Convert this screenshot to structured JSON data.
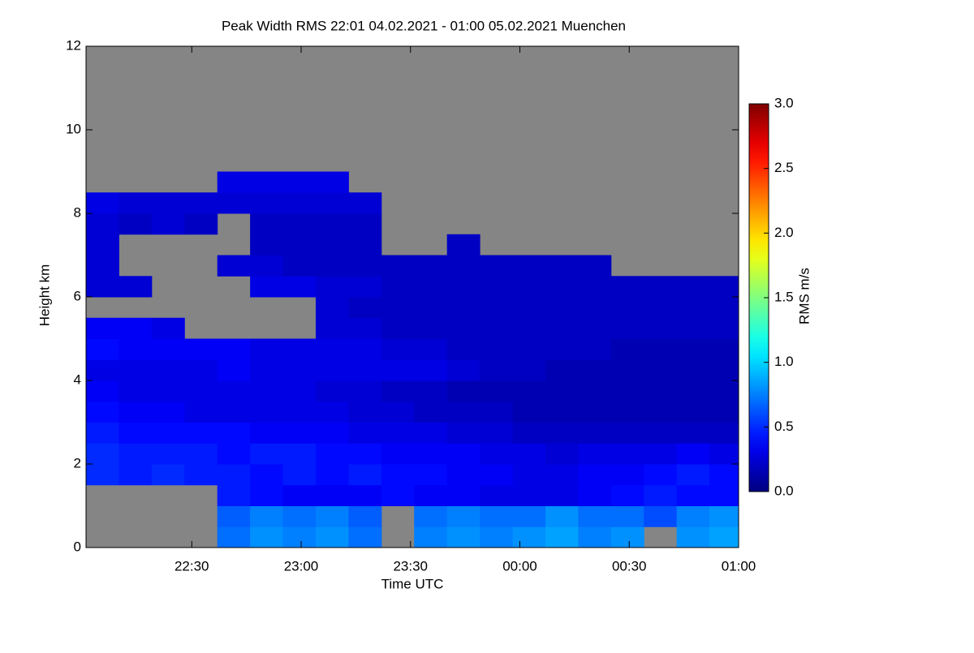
{
  "chart_data": {
    "type": "heatmap",
    "title": "Peak Width RMS   22:01 04.02.2021 - 01:00 05.02.2021 Muenchen",
    "x_label": "Time UTC",
    "y_label": "Height km",
    "colorbar_label": "RMS m/s",
    "colormap": "jet",
    "missing_color": "#858585",
    "xlim": [
      "2021-02-04T22:01",
      "2021-02-05T01:00"
    ],
    "xticks": [
      {
        "value": "2021-02-04T22:30",
        "label": "22:30"
      },
      {
        "value": "2021-02-04T23:00",
        "label": "23:00"
      },
      {
        "value": "2021-02-04T23:30",
        "label": "23:30"
      },
      {
        "value": "2021-02-05T00:00",
        "label": "00:00"
      },
      {
        "value": "2021-02-05T00:30",
        "label": "00:30"
      },
      {
        "value": "2021-02-05T01:00",
        "label": "01:00"
      }
    ],
    "ylim": [
      0,
      12
    ],
    "yticks": [
      0,
      2,
      4,
      6,
      8,
      10,
      12
    ],
    "clim": [
      0,
      3
    ],
    "cticks": [
      {
        "value": 0,
        "label": "0.0"
      },
      0.5,
      {
        "value": 1,
        "label": "1.0"
      },
      1.5,
      {
        "value": 2,
        "label": "2.0"
      },
      2.5,
      {
        "value": 3,
        "label": "3.0"
      }
    ],
    "x": [
      "2021-02-04T22:01",
      "2021-02-04T22:10",
      "2021-02-04T22:19",
      "2021-02-04T22:28",
      "2021-02-04T22:37",
      "2021-02-04T22:46",
      "2021-02-04T22:55",
      "2021-02-04T23:04",
      "2021-02-04T23:13",
      "2021-02-04T23:22",
      "2021-02-04T23:31",
      "2021-02-04T23:40",
      "2021-02-04T23:49",
      "2021-02-04T23:58",
      "2021-02-05T00:07",
      "2021-02-05T00:16",
      "2021-02-05T00:25",
      "2021-02-05T00:34",
      "2021-02-05T00:43",
      "2021-02-05T00:52"
    ],
    "y": [
      0,
      0.5,
      1,
      1.5,
      2,
      2.5,
      3,
      3.5,
      4,
      4.5,
      5,
      5.5,
      6,
      6.5,
      7,
      7.5,
      8,
      8.5,
      9,
      9.5,
      10,
      10.5,
      11,
      11.5
    ],
    "z": [
      [
        null,
        null,
        null,
        null,
        0.7,
        0.8,
        0.75,
        0.8,
        0.7,
        null,
        0.75,
        0.8,
        0.75,
        0.8,
        0.85,
        0.75,
        0.8,
        null,
        0.8,
        0.85
      ],
      [
        null,
        null,
        null,
        null,
        0.65,
        0.75,
        0.7,
        0.75,
        0.65,
        null,
        0.7,
        0.75,
        0.7,
        0.7,
        0.8,
        0.7,
        0.7,
        0.6,
        0.75,
        0.8
      ],
      [
        null,
        null,
        null,
        null,
        0.45,
        0.4,
        0.35,
        0.35,
        0.35,
        0.4,
        0.35,
        0.35,
        0.3,
        0.3,
        0.3,
        0.35,
        0.4,
        0.45,
        0.4,
        0.4
      ],
      [
        0.5,
        0.45,
        0.5,
        0.45,
        0.45,
        0.4,
        0.45,
        0.4,
        0.45,
        0.4,
        0.4,
        0.35,
        0.35,
        0.3,
        0.3,
        0.35,
        0.35,
        0.4,
        0.45,
        0.4
      ],
      [
        0.5,
        0.45,
        0.45,
        0.45,
        0.4,
        0.45,
        0.45,
        0.4,
        0.4,
        0.35,
        0.35,
        0.35,
        0.3,
        0.3,
        0.25,
        0.3,
        0.3,
        0.3,
        0.35,
        0.3
      ],
      [
        0.45,
        0.4,
        0.4,
        0.4,
        0.4,
        0.35,
        0.35,
        0.35,
        0.3,
        0.3,
        0.3,
        0.25,
        0.25,
        0.2,
        0.2,
        0.2,
        0.2,
        0.2,
        0.2,
        0.2
      ],
      [
        0.4,
        0.35,
        0.35,
        0.3,
        0.3,
        0.3,
        0.3,
        0.3,
        0.25,
        0.25,
        0.2,
        0.2,
        0.2,
        0.15,
        0.15,
        0.15,
        0.15,
        0.15,
        0.15,
        0.15
      ],
      [
        0.35,
        0.3,
        0.3,
        0.3,
        0.3,
        0.3,
        0.3,
        0.25,
        0.25,
        0.2,
        0.2,
        0.15,
        0.15,
        0.15,
        0.15,
        0.15,
        0.15,
        0.15,
        0.15,
        0.15
      ],
      [
        0.3,
        0.3,
        0.3,
        0.3,
        0.35,
        0.3,
        0.3,
        0.3,
        0.3,
        0.3,
        0.3,
        0.25,
        0.2,
        0.2,
        0.15,
        0.15,
        0.15,
        0.15,
        0.15,
        0.15
      ],
      [
        0.4,
        0.35,
        0.35,
        0.35,
        0.35,
        0.3,
        0.3,
        0.3,
        0.3,
        0.25,
        0.25,
        0.2,
        0.2,
        0.2,
        0.2,
        0.2,
        0.15,
        0.15,
        0.15,
        0.15
      ],
      [
        0.35,
        0.35,
        0.3,
        null,
        null,
        null,
        null,
        0.25,
        0.25,
        0.2,
        0.2,
        0.2,
        0.2,
        0.2,
        0.2,
        0.2,
        0.2,
        0.2,
        0.2,
        0.2
      ],
      [
        null,
        null,
        null,
        null,
        null,
        null,
        null,
        0.25,
        0.2,
        0.2,
        0.2,
        0.2,
        0.2,
        0.2,
        0.2,
        0.2,
        0.2,
        0.2,
        0.2,
        0.2
      ],
      [
        0.25,
        0.25,
        null,
        null,
        null,
        0.3,
        0.3,
        0.25,
        0.25,
        0.2,
        0.2,
        0.2,
        0.2,
        0.2,
        0.2,
        0.2,
        0.2,
        0.2,
        0.2,
        0.2
      ],
      [
        0.25,
        null,
        null,
        null,
        0.25,
        0.25,
        0.2,
        0.2,
        0.2,
        0.2,
        0.2,
        0.2,
        0.2,
        0.2,
        0.2,
        0.2,
        null,
        null,
        null,
        null
      ],
      [
        0.25,
        null,
        null,
        null,
        null,
        0.2,
        0.2,
        0.2,
        0.2,
        null,
        null,
        0.2,
        null,
        null,
        null,
        null,
        null,
        null,
        null,
        null
      ],
      [
        0.25,
        0.2,
        0.25,
        0.2,
        null,
        0.2,
        0.2,
        0.2,
        0.2,
        null,
        null,
        null,
        null,
        null,
        null,
        null,
        null,
        null,
        null,
        null
      ],
      [
        0.3,
        0.25,
        0.25,
        0.25,
        0.25,
        0.25,
        0.25,
        0.25,
        0.25,
        null,
        null,
        null,
        null,
        null,
        null,
        null,
        null,
        null,
        null,
        null
      ],
      [
        null,
        null,
        null,
        null,
        0.3,
        0.3,
        0.3,
        0.3,
        null,
        null,
        null,
        null,
        null,
        null,
        null,
        null,
        null,
        null,
        null,
        null
      ],
      [
        null,
        null,
        null,
        null,
        null,
        null,
        null,
        null,
        null,
        null,
        null,
        null,
        null,
        null,
        null,
        null,
        null,
        null,
        null,
        null
      ],
      [
        null,
        null,
        null,
        null,
        null,
        null,
        null,
        null,
        null,
        null,
        null,
        null,
        null,
        null,
        null,
        null,
        null,
        null,
        null,
        null
      ],
      [
        null,
        null,
        null,
        null,
        null,
        null,
        null,
        null,
        null,
        null,
        null,
        null,
        null,
        null,
        null,
        null,
        null,
        null,
        null,
        null
      ],
      [
        null,
        null,
        null,
        null,
        null,
        null,
        null,
        null,
        null,
        null,
        null,
        null,
        null,
        null,
        null,
        null,
        null,
        null,
        null,
        null
      ],
      [
        null,
        null,
        null,
        null,
        null,
        null,
        null,
        null,
        null,
        null,
        null,
        null,
        null,
        null,
        null,
        null,
        null,
        null,
        null,
        null
      ],
      [
        null,
        null,
        null,
        null,
        null,
        null,
        null,
        null,
        null,
        null,
        null,
        null,
        null,
        null,
        null,
        null,
        null,
        null,
        null,
        null
      ]
    ]
  }
}
